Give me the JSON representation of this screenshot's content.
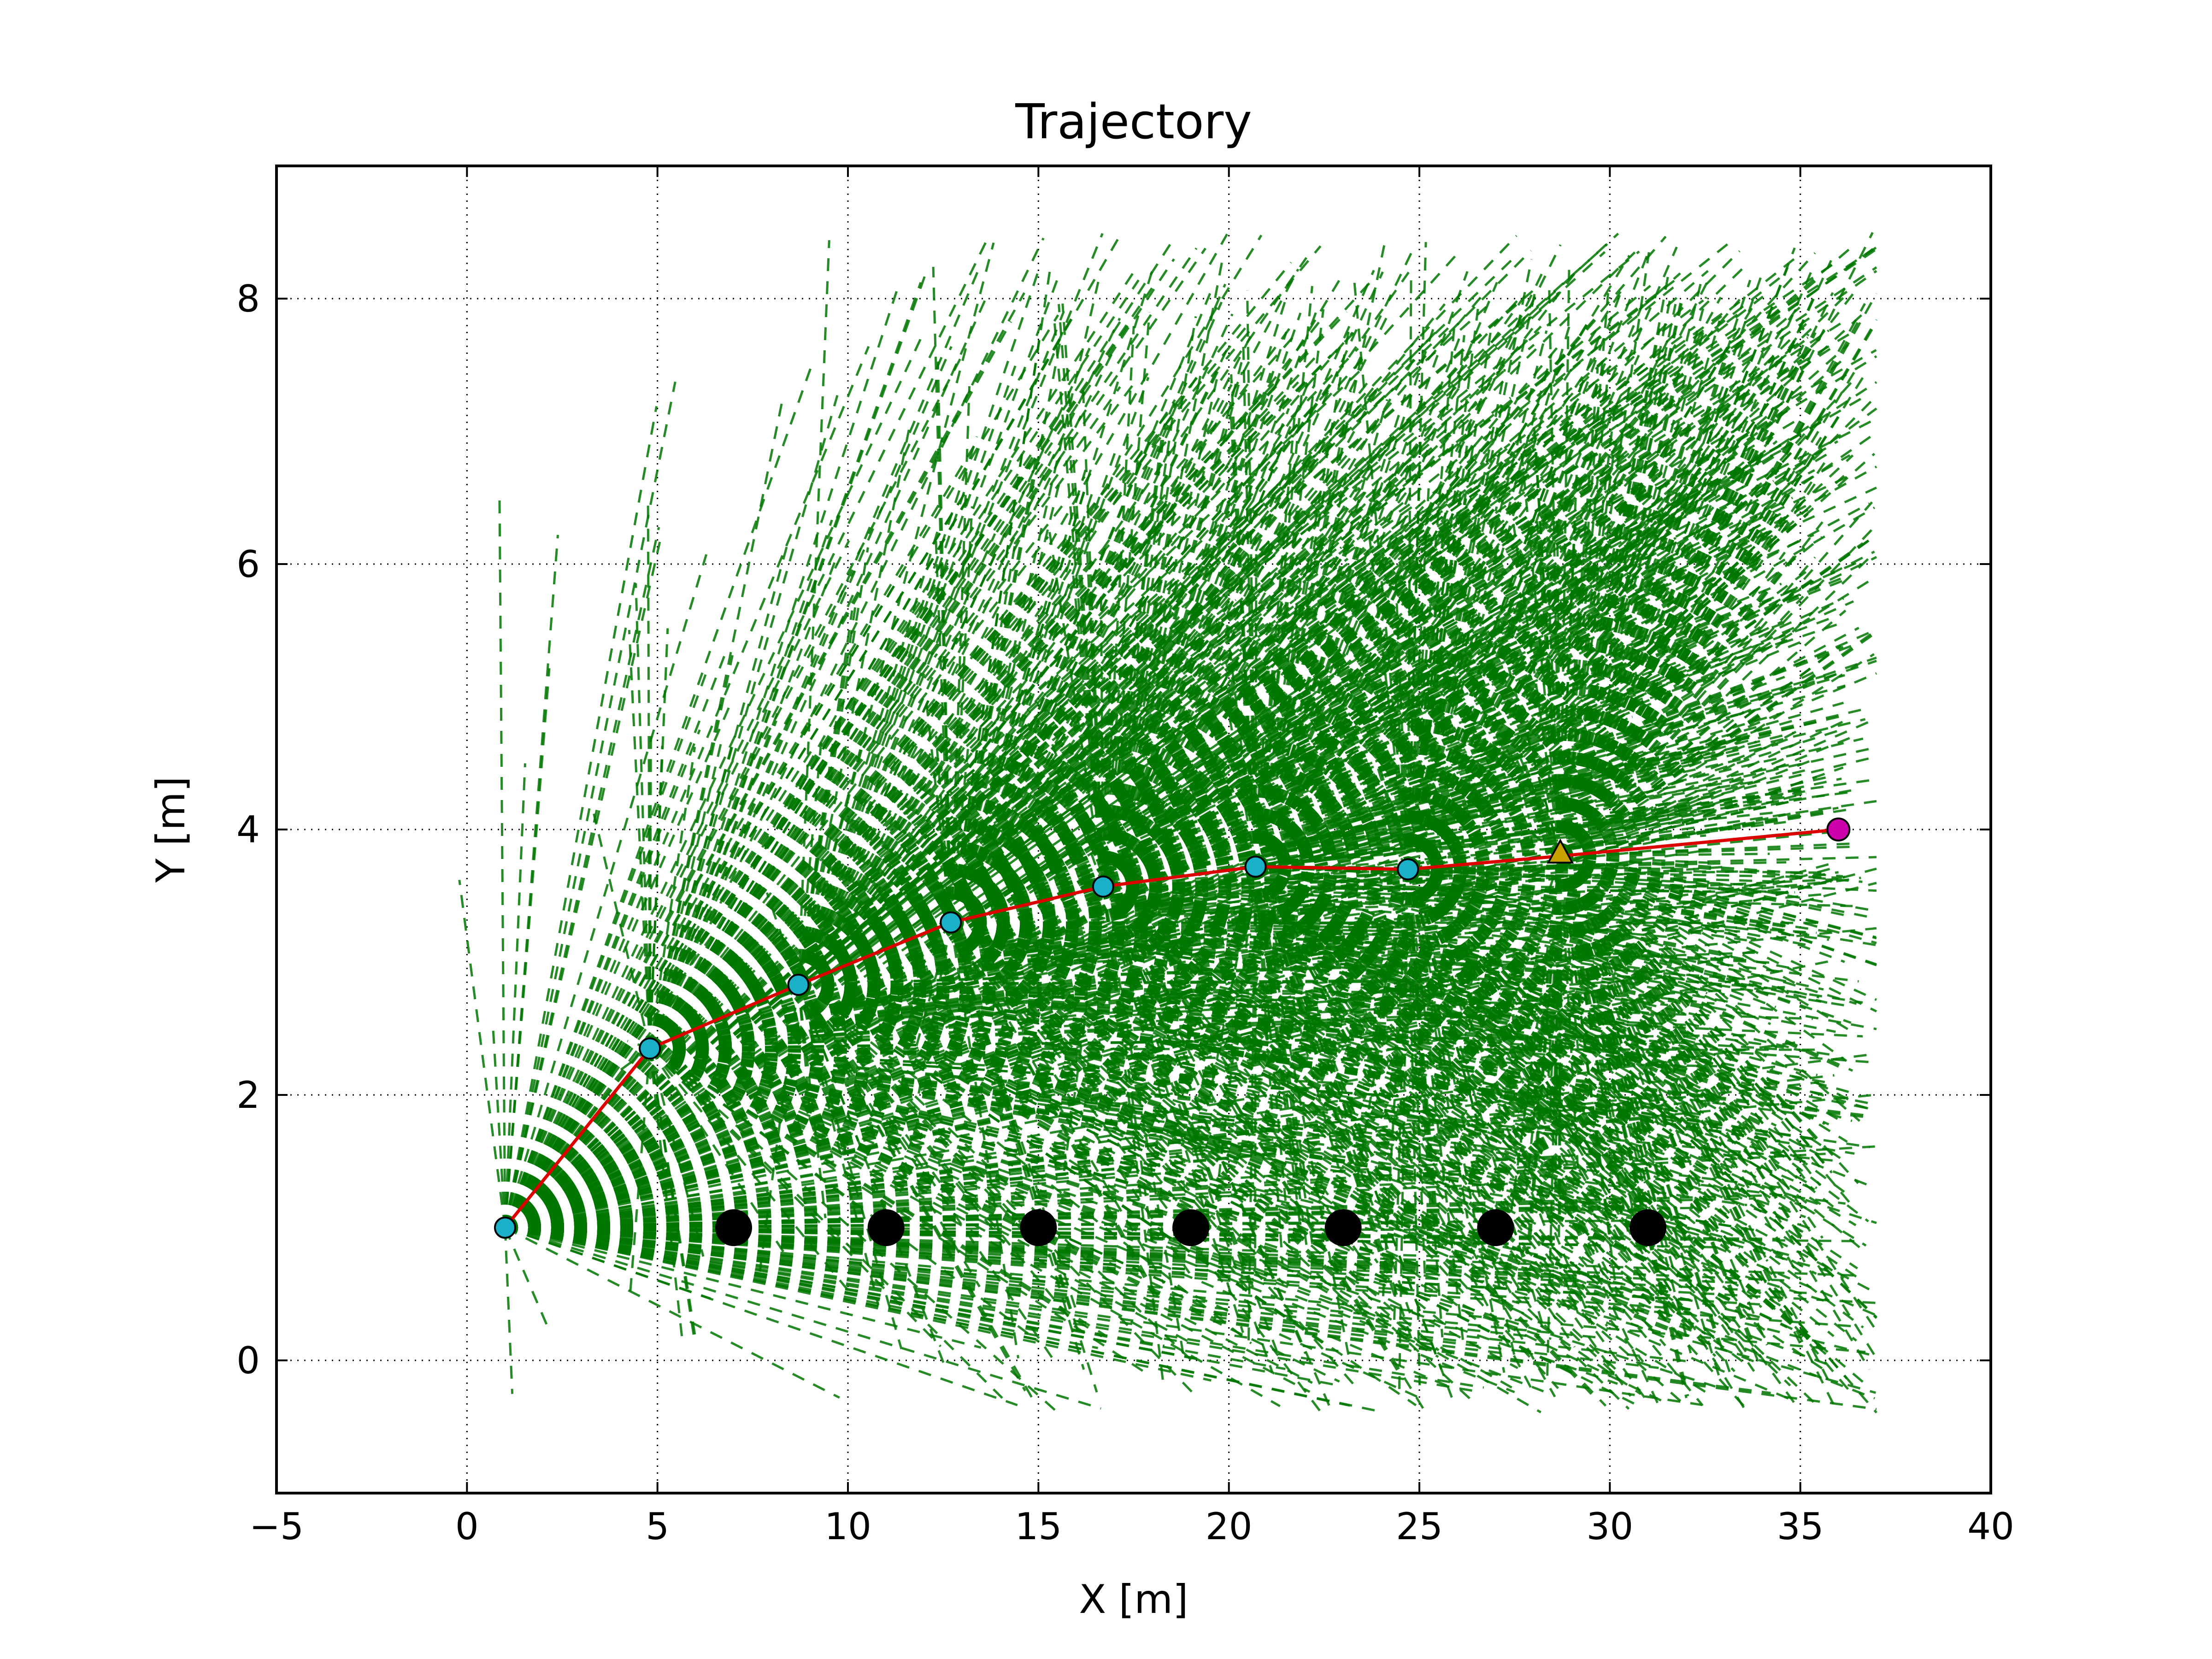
{
  "chart_data": {
    "type": "scatter",
    "title": "Trajectory",
    "xlabel": "X [m]",
    "ylabel": "Y [m]",
    "xlim": [
      -5,
      40
    ],
    "ylim": [
      -1,
      9
    ],
    "xticks": [
      -5,
      0,
      5,
      10,
      15,
      20,
      25,
      30,
      35,
      40
    ],
    "yticks": [
      0,
      2,
      4,
      6,
      8
    ],
    "xtick_labels": [
      "−5",
      "0",
      "5",
      "10",
      "15",
      "20",
      "25",
      "30",
      "35",
      "40"
    ],
    "ytick_labels": [
      "0",
      "2",
      "4",
      "6",
      "8"
    ],
    "grid": true,
    "grid_style": "dotted",
    "series": [
      {
        "kind": "trajectory_line",
        "color": "#dd0000",
        "x": [
          1.0,
          4.8,
          8.7,
          12.7,
          16.7,
          20.7,
          24.7,
          28.7,
          36.0
        ],
        "y": [
          1.0,
          2.35,
          2.83,
          3.3,
          3.57,
          3.72,
          3.7,
          3.8,
          4.0
        ]
      },
      {
        "kind": "pose_markers",
        "marker": "circle",
        "color": "#1ab0c8",
        "x": [
          1.0,
          4.8,
          8.7,
          12.7,
          16.7,
          20.7,
          24.7
        ],
        "y": [
          1.0,
          2.35,
          2.83,
          3.3,
          3.57,
          3.72,
          3.7
        ]
      },
      {
        "kind": "landmarks",
        "marker": "circle",
        "color": "#000000",
        "x": [
          7,
          11,
          15,
          19,
          23,
          27,
          31
        ],
        "y": [
          1,
          1,
          1,
          1,
          1,
          1,
          1
        ]
      },
      {
        "kind": "current_estimate",
        "marker": "triangle",
        "color": "#c8a000",
        "x": [
          28.7
        ],
        "y": [
          3.82
        ]
      },
      {
        "kind": "goal",
        "marker": "circle",
        "color": "#cc00aa",
        "x": [
          36.0
        ],
        "y": [
          4.0
        ]
      }
    ],
    "particle_origins": {
      "color": "#007700",
      "x": [
        1.0,
        4.8,
        8.7,
        12.7,
        16.7,
        20.7,
        24.7,
        28.7
      ],
      "y": [
        1.0,
        2.35,
        2.83,
        3.3,
        3.57,
        3.72,
        3.7,
        3.8
      ]
    }
  }
}
